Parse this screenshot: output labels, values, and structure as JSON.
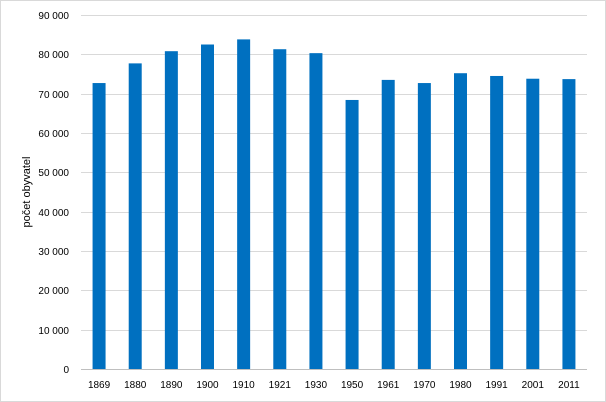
{
  "chart_data": {
    "type": "bar",
    "title": "",
    "xlabel": "",
    "ylabel": "počet obyvatel",
    "ylim": [
      0,
      90000
    ],
    "yticks": [
      0,
      10000,
      20000,
      30000,
      40000,
      50000,
      60000,
      70000,
      80000,
      90000
    ],
    "ytick_labels": [
      "0",
      "10 000",
      "20 000",
      "30 000",
      "40 000",
      "50 000",
      "60 000",
      "70 000",
      "80 000",
      "90 000"
    ],
    "grid": true,
    "legend": "none",
    "categories": [
      "1869",
      "1880",
      "1890",
      "1900",
      "1910",
      "1921",
      "1930",
      "1950",
      "1961",
      "1970",
      "1980",
      "1991",
      "2001",
      "2011"
    ],
    "values": [
      72700,
      77700,
      80800,
      82500,
      83800,
      81300,
      80300,
      68400,
      73500,
      72700,
      75200,
      74500,
      73800,
      73700
    ],
    "bar_color": "#0070c0",
    "grid_color": "#d9d9d9",
    "axis_color": "#bfbfbf"
  }
}
